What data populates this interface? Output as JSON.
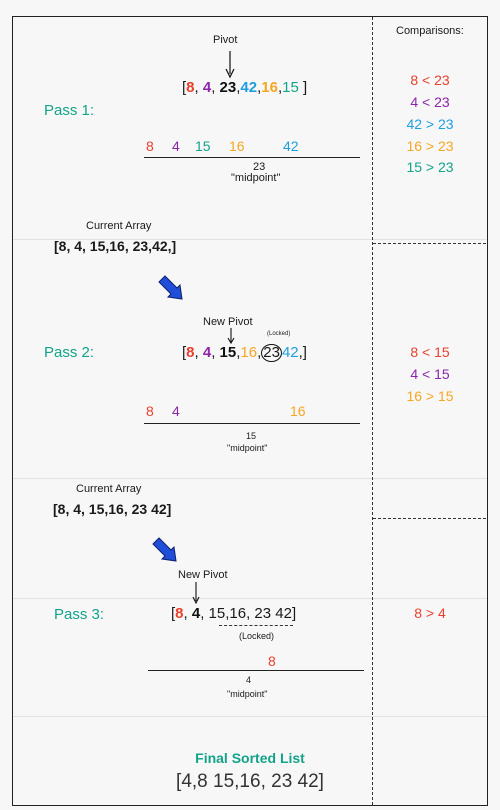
{
  "comparisons_header": "Comparisons:",
  "pass1": {
    "label": "Pass 1:",
    "pivot_label": "Pivot",
    "array": {
      "open": "[",
      "v1": "8",
      "s1": ", ",
      "v2": "4",
      "s2": ", ",
      "v3": "23",
      "s3": ",",
      "v4": "42",
      "s4": ",",
      "v5": "16",
      "s5": ",",
      "v6": "15",
      "close": " ]"
    },
    "partition": {
      "a": "8",
      "b": "4",
      "c": "15",
      "d": "16",
      "e": "42"
    },
    "midpoint_value": "23",
    "midpoint_label": "\"midpoint\"",
    "comparisons": [
      "8 < 23",
      "4 < 23",
      "42 > 23",
      "16 > 23",
      "15 > 23"
    ]
  },
  "current_array_1": {
    "label": "Current Array",
    "value": "[8, 4, 15,16, 23,42,]"
  },
  "pass2": {
    "label": "Pass 2:",
    "pivot_label": "New Pivot",
    "locked_label": "(Locked)",
    "array": {
      "open": "[",
      "v1": "8",
      "s1": ", ",
      "v2": "4",
      "s2": ", ",
      "v3": "15",
      "s3": ",",
      "v4": "16",
      "s4": ",",
      "v5": "23",
      "v6": "42",
      "close": ",]"
    },
    "partition": {
      "a": "8",
      "b": "4",
      "c": "16"
    },
    "midpoint_value": "15",
    "midpoint_label": "\"midpoint\"",
    "comparisons": [
      "8 < 15",
      "4 < 15",
      "16 > 15"
    ]
  },
  "current_array_2": {
    "label": "Current Array",
    "value": "[8, 4, 15,16, 23 42]"
  },
  "pass3": {
    "label": "Pass 3:",
    "pivot_label": "New Pivot",
    "locked_label": "(Locked)",
    "array": {
      "open": "[",
      "v1": "8",
      "s1": ", ",
      "v2": "4",
      "s2": ", ",
      "rest": "15,16, 23 42]"
    },
    "partition": {
      "a": "8"
    },
    "midpoint_value": "4",
    "midpoint_label": "\"midpoint\"",
    "comparisons": [
      "8 > 4"
    ]
  },
  "final": {
    "title": "Final Sorted List",
    "value": "[4,8 15,16, 23 42]"
  },
  "colors": {
    "red": "#e8412c",
    "purple": "#8e24aa",
    "blue": "#1e9ee0",
    "orange": "#f6a623",
    "teal": "#12a38a",
    "arrow": "#1f4fd8"
  }
}
